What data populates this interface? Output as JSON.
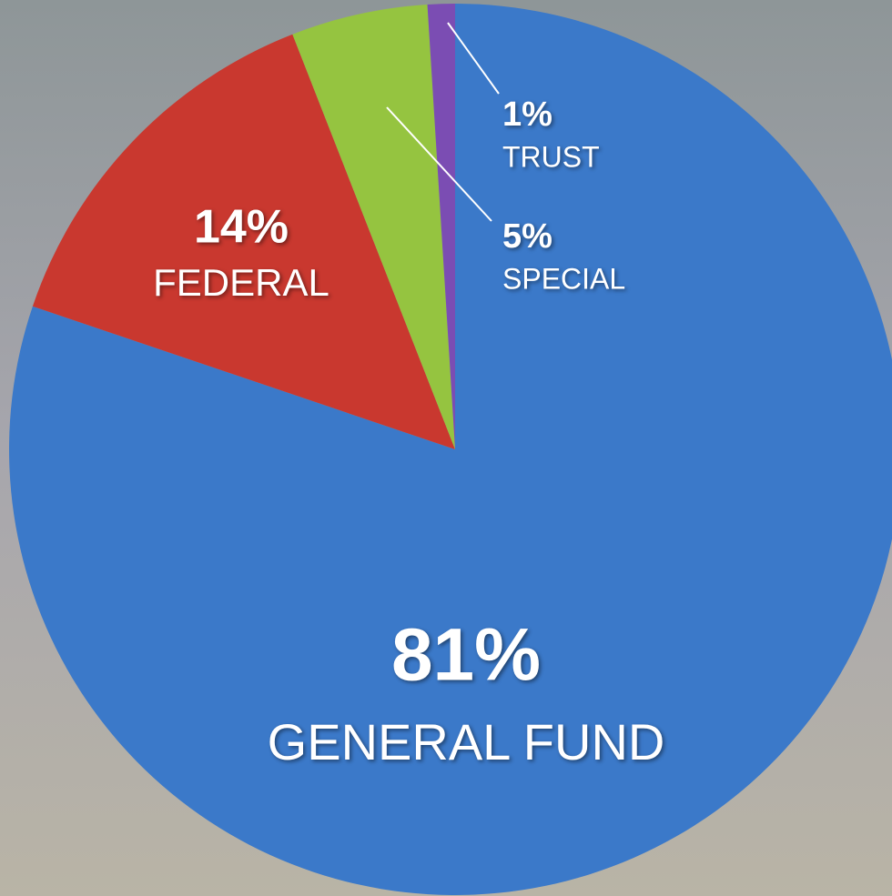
{
  "chart_data": {
    "type": "pie",
    "categories": [
      "GENERAL FUND",
      "FEDERAL",
      "SPECIAL",
      "TRUST"
    ],
    "values": [
      81,
      14,
      5,
      1
    ],
    "value_labels": [
      "81%",
      "14%",
      "5%",
      "1%"
    ],
    "colors": [
      "#3b79c9",
      "#c9382f",
      "#95c440",
      "#7b4db3"
    ]
  }
}
